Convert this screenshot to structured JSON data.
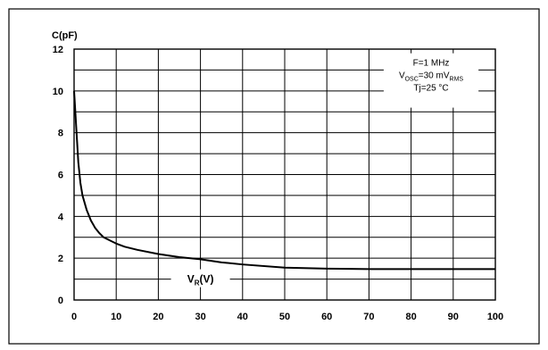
{
  "chart_data": {
    "type": "line",
    "title": "",
    "ylabel": "C(pF)",
    "xlabel": {
      "main": "V",
      "sub": "R",
      "unit": "(V)"
    },
    "xlim": [
      0,
      100
    ],
    "ylim": [
      0,
      12
    ],
    "x_ticks": [
      0,
      10,
      20,
      30,
      40,
      50,
      60,
      70,
      80,
      90,
      100
    ],
    "y_ticks": [
      0,
      2,
      4,
      6,
      8,
      10,
      12
    ],
    "x_tick_labels": [
      "0",
      "10",
      "20",
      "30",
      "40",
      "50",
      "60",
      "70",
      "80",
      "90",
      "100"
    ],
    "y_tick_labels": [
      "0",
      "2",
      "4",
      "6",
      "8",
      "10",
      "12"
    ],
    "grid": true,
    "series": [
      {
        "color": "#000000",
        "x": [
          0,
          0.5,
          1,
          1.5,
          2,
          3,
          4,
          5,
          6,
          7,
          8,
          10,
          12,
          15,
          20,
          25,
          30,
          35,
          40,
          50,
          60,
          70,
          80,
          90,
          100
        ],
        "y": [
          10.0,
          8.3,
          6.6,
          5.6,
          5.0,
          4.3,
          3.8,
          3.45,
          3.2,
          3.0,
          2.9,
          2.7,
          2.55,
          2.4,
          2.2,
          2.05,
          1.95,
          1.8,
          1.7,
          1.55,
          1.5,
          1.48,
          1.48,
          1.48,
          1.48
        ]
      }
    ],
    "annotation": {
      "lines": [
        {
          "parts": [
            {
              "text": "F=1 MHz"
            }
          ]
        },
        {
          "parts": [
            {
              "text": "V"
            },
            {
              "text": "OSC",
              "sub": true
            },
            {
              "text": "=30 mV"
            },
            {
              "text": "RMS",
              "sub": true
            }
          ]
        },
        {
          "parts": [
            {
              "text": "Tj=25 °C"
            }
          ]
        }
      ],
      "position": "top-right"
    }
  }
}
